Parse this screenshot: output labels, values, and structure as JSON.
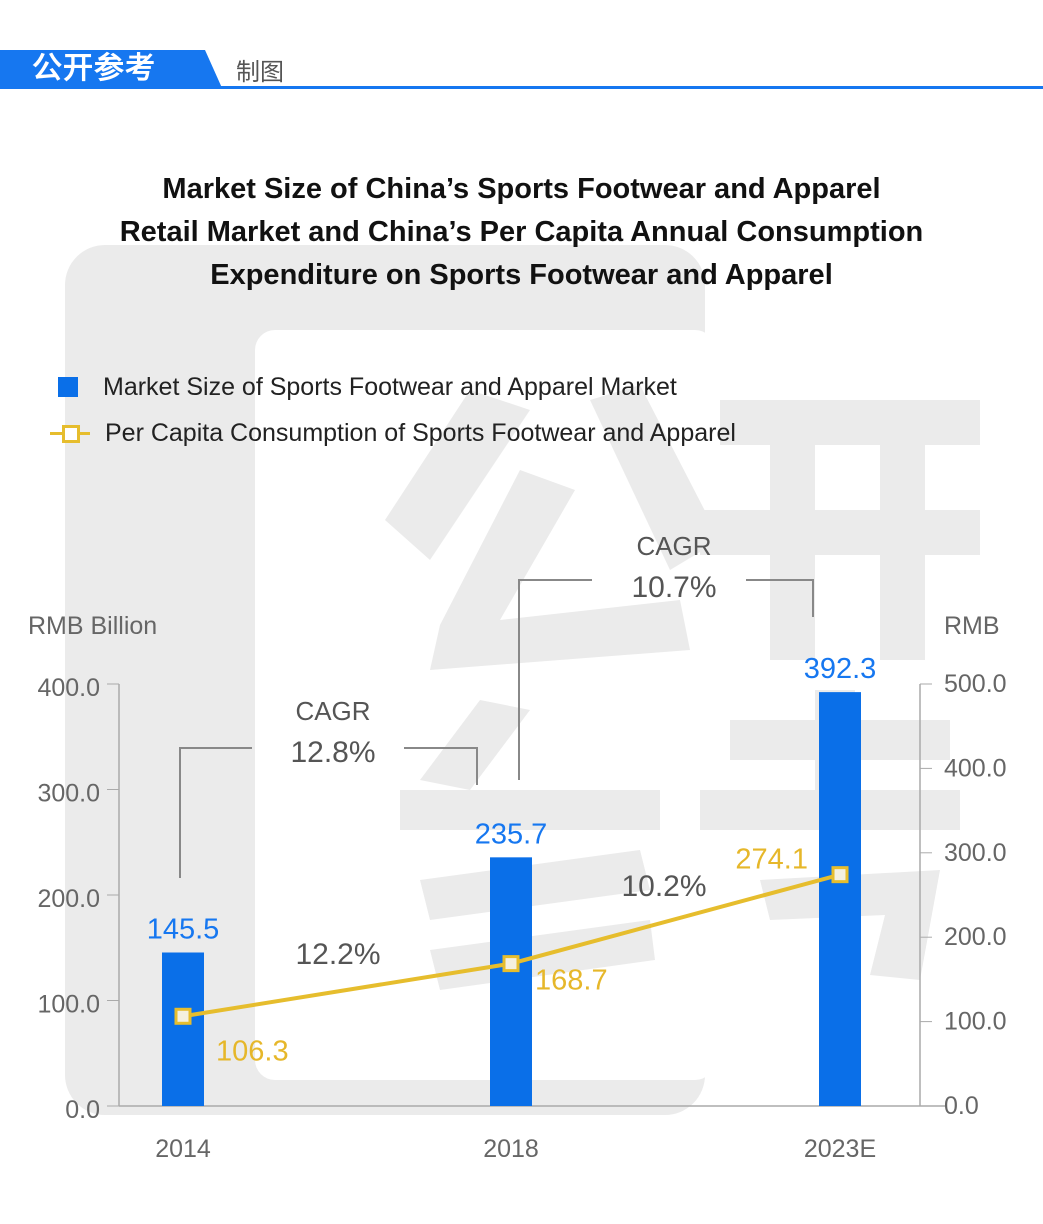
{
  "header": {
    "brand": "公开参考",
    "subtitle": "制图",
    "accent": "#1677f0"
  },
  "watermark": {
    "characters": [
      "公",
      "开",
      "参",
      "考"
    ]
  },
  "title_lines": [
    "Market Size of China’s Sports Footwear and Apparel",
    "Retail Market and China’s Per Capita Annual Consumption",
    "Expenditure on Sports Footwear and Apparel"
  ],
  "chart_data": {
    "type": "bar+line",
    "categories": [
      "2014",
      "2018",
      "2023E"
    ],
    "series": [
      {
        "name": "Market Size of Sports Footwear and Apparel Market",
        "type": "bar",
        "axis": "left",
        "color": "#0a6fe8",
        "values": [
          145.5,
          235.7,
          392.3
        ],
        "labels": [
          "145.5",
          "235.7",
          "392.3"
        ]
      },
      {
        "name": "Per Capita Consumption of Sports Footwear and Apparel",
        "type": "line",
        "axis": "right",
        "color": "#e6bd2d",
        "values": [
          106.3,
          168.7,
          274.1
        ],
        "labels": [
          "106.3",
          "168.7",
          "274.1"
        ]
      }
    ],
    "left_axis": {
      "label": "RMB Billion",
      "range": [
        0,
        400
      ],
      "ticks": [
        "0.0",
        "100.0",
        "200.0",
        "300.0",
        "400.0"
      ]
    },
    "right_axis": {
      "label": "RMB",
      "range": [
        0,
        500
      ],
      "ticks": [
        "0.0",
        "100.0",
        "200.0",
        "300.0",
        "400.0",
        "500.0"
      ]
    },
    "annotations": {
      "cagr_label": "CAGR",
      "bar_cagr_2014_2018": "12.8%",
      "bar_cagr_2018_2023": "10.7%",
      "line_cagr_2014_2018": "12.2%",
      "line_cagr_2018_2023": "10.2%"
    },
    "legend": "top-left",
    "grid": false
  }
}
